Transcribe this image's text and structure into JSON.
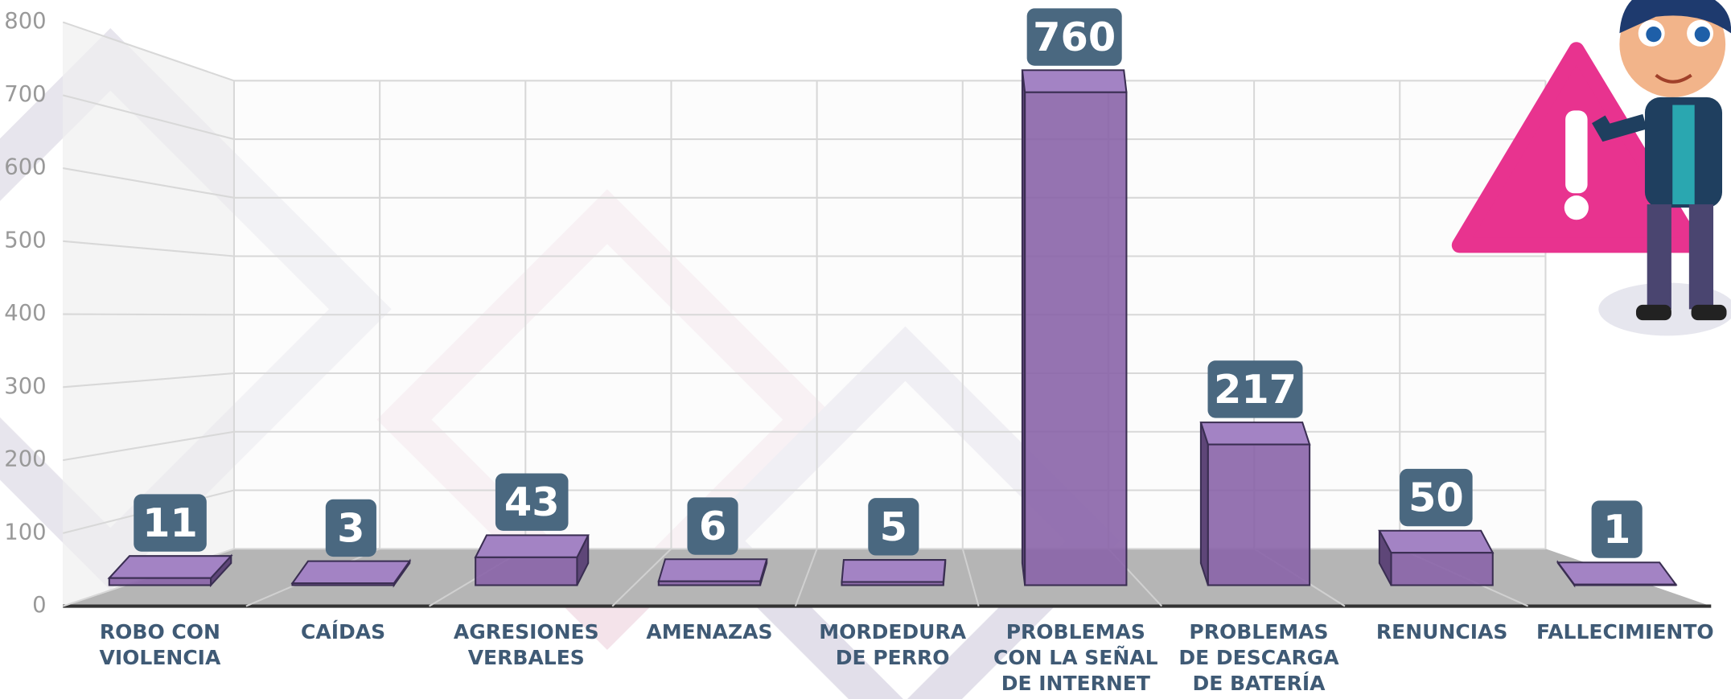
{
  "chart_data": {
    "type": "bar3d",
    "categories": [
      "ROBO CON\nVIOLENCIA",
      "CAÍDAS",
      "AGRESIONES\nVERBALES",
      "AMENAZAS",
      "MORDEDURA\nDE PERRO",
      "PROBLEMAS\nCON LA SEÑAL\nDE INTERNET",
      "PROBLEMAS\nDE DESCARGA\nDE BATERÍA",
      "RENUNCIAS",
      "FALLECIMIENTO"
    ],
    "values": [
      11,
      3,
      43,
      6,
      5,
      760,
      217,
      50,
      1
    ],
    "color": "#8a64a8",
    "label_color": "#4a6880",
    "ylim": [
      0,
      800
    ],
    "yticks": [
      0,
      100,
      200,
      300,
      400,
      500,
      600,
      700,
      800
    ],
    "grid": true
  }
}
